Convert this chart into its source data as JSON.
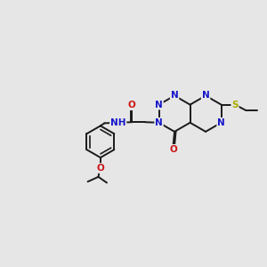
{
  "bg_color": "#e6e6e6",
  "bond_color": "#1a1a1a",
  "bond_width": 1.4,
  "atom_colors": {
    "N": "#1515cc",
    "O": "#cc1515",
    "S": "#aaaa00",
    "C": "#1a1a1a"
  },
  "font_size": 7.5,
  "fig_size": [
    3.0,
    3.0
  ],
  "dpi": 100
}
